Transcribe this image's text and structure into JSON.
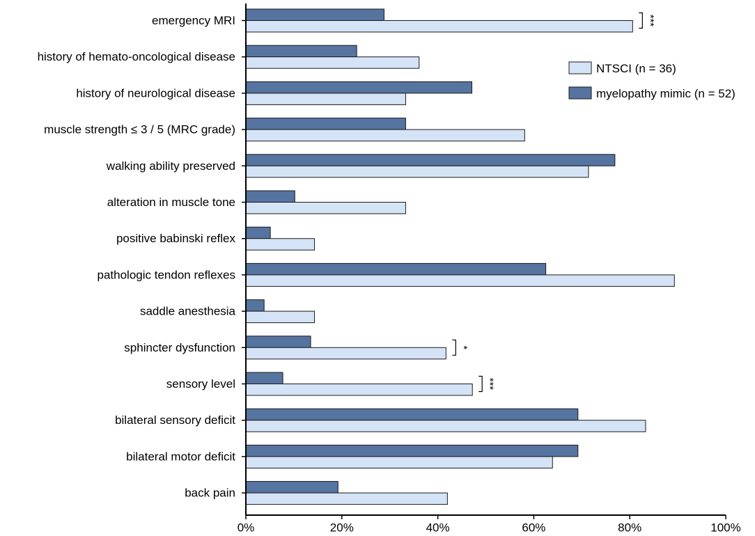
{
  "chart_data": {
    "type": "bar",
    "orientation": "horizontal",
    "categories": [
      "emergency MRI",
      "history of hemato-oncological disease",
      "history of neurological disease",
      "muscle strength ≤ 3 / 5 (MRC grade)",
      "walking ability preserved",
      "alteration in muscle tone",
      "positive babinski reflex",
      "pathologic tendon reflexes",
      "saddle anesthesia",
      "sphincter dysfunction",
      "sensory level",
      "bilateral sensory deficit",
      "bilateral motor deficit",
      "back pain"
    ],
    "series": [
      {
        "name": "myelopathy mimic (n = 52)",
        "color": "#5674A0",
        "values": [
          28.8,
          23.1,
          47.1,
          33.3,
          76.9,
          10.2,
          5.1,
          62.5,
          3.8,
          13.5,
          7.7,
          69.2,
          69.2,
          19.2
        ]
      },
      {
        "name": "NTSCI (n = 36)",
        "color": "#D5E3F6",
        "values": [
          80.6,
          36.1,
          33.3,
          58.1,
          71.4,
          33.3,
          14.3,
          89.3,
          14.3,
          41.7,
          47.2,
          83.3,
          63.9,
          42.0
        ]
      }
    ],
    "significance": [
      {
        "category": "emergency MRI",
        "label": "***"
      },
      {
        "category": "sphincter dysfunction",
        "label": "*"
      },
      {
        "category": "sensory level",
        "label": "***"
      }
    ],
    "xlim": [
      0,
      100
    ],
    "xticks": [
      "0%",
      "20%",
      "40%",
      "60%",
      "80%",
      "100%"
    ],
    "xlabel": "",
    "ylabel": "",
    "title": "",
    "grid": false,
    "legend": {
      "placement": "top-right",
      "entries": [
        "NTSCI (n = 36)",
        "myelopathy mimic (n = 52)"
      ]
    }
  }
}
